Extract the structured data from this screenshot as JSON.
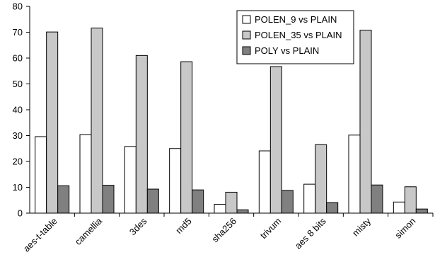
{
  "chart_data": {
    "type": "bar",
    "title": "",
    "xlabel": "",
    "ylabel": "",
    "ylim": [
      0,
      80
    ],
    "yticks": [
      0,
      10,
      20,
      30,
      40,
      50,
      60,
      70,
      80
    ],
    "grid": false,
    "legend_position": "top-right",
    "categories": [
      "aes-t-table",
      "camellia",
      "3des",
      "md5",
      "sha256",
      "trivum",
      "aes 8 bits",
      "misty",
      "simon"
    ],
    "series": [
      {
        "name": "POLEN_9 vs PLAIN",
        "color": "#ffffff",
        "values": [
          29.6,
          30.4,
          25.8,
          25.0,
          3.4,
          24.1,
          11.2,
          30.2,
          4.3
        ]
      },
      {
        "name": "POLEN_35 vs PLAIN",
        "color": "#c8c8c8",
        "values": [
          70.1,
          71.6,
          61.0,
          58.6,
          8.1,
          56.7,
          26.5,
          70.8,
          10.2
        ]
      },
      {
        "name": "POLY vs PLAIN",
        "color": "#808080",
        "values": [
          10.6,
          10.8,
          9.3,
          9.0,
          1.3,
          8.8,
          4.1,
          10.9,
          1.6
        ]
      }
    ]
  }
}
